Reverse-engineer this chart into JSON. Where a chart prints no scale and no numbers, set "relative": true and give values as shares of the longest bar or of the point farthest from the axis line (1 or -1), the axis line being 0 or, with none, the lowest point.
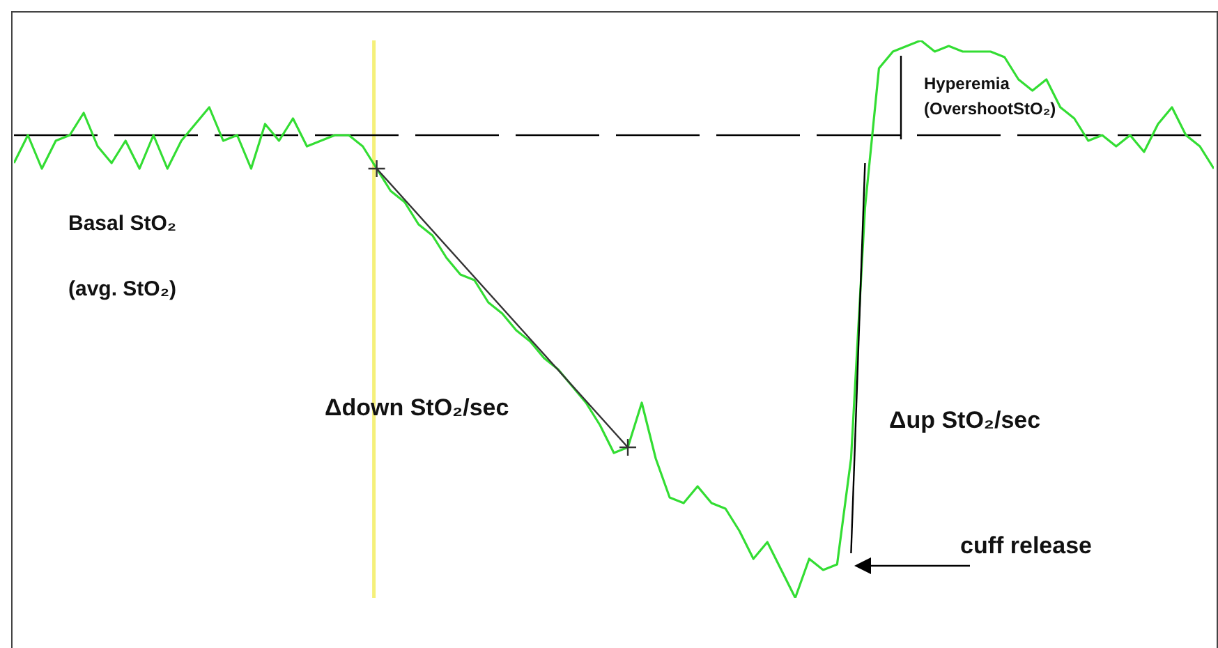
{
  "chart_data": {
    "type": "line",
    "relative": true,
    "categories": [
      null,
      null,
      null,
      null,
      null,
      null,
      null,
      null,
      null,
      null,
      null,
      null,
      null,
      null,
      null,
      null,
      null,
      null,
      null,
      null,
      null,
      null,
      null,
      null,
      null,
      null,
      null,
      null,
      null,
      null,
      null,
      null,
      null,
      null,
      null,
      null,
      null,
      null,
      null,
      null,
      null,
      null,
      null,
      null,
      null,
      null,
      null,
      null,
      null,
      null,
      null,
      null,
      null,
      null,
      null,
      null,
      null,
      null,
      null,
      null,
      null,
      null,
      null,
      null,
      null,
      null,
      null,
      null,
      null,
      null,
      null,
      null,
      null,
      null,
      null,
      null,
      null,
      null,
      null,
      null,
      null,
      null,
      null,
      null,
      null,
      null,
      null
    ],
    "series": [
      {
        "color": "#33dd33",
        "marker": "none",
        "values": [
          0.78,
          0.83,
          0.77,
          0.82,
          0.83,
          0.87,
          0.81,
          0.78,
          0.82,
          0.77,
          0.83,
          0.77,
          0.82,
          0.85,
          0.88,
          0.82,
          0.83,
          0.77,
          0.85,
          0.82,
          0.86,
          0.81,
          0.82,
          0.83,
          0.83,
          0.81,
          0.77,
          0.73,
          0.71,
          0.67,
          0.65,
          0.61,
          0.58,
          0.57,
          0.53,
          0.51,
          0.48,
          0.46,
          0.43,
          0.41,
          0.38,
          0.35,
          0.31,
          0.26,
          0.27,
          0.35,
          0.25,
          0.18,
          0.17,
          0.2,
          0.17,
          0.16,
          0.12,
          0.07,
          0.1,
          0.05,
          0,
          0.07,
          0.05,
          0.06,
          0.25,
          0.7,
          0.95,
          0.98,
          0.99,
          1,
          0.98,
          0.99,
          0.98,
          0.98,
          0.98,
          0.97,
          0.93,
          0.91,
          0.93,
          0.88,
          0.86,
          0.82,
          0.83,
          0.81,
          0.83,
          0.8,
          0.85,
          0.88,
          0.83,
          0.81,
          0.77
        ]
      },
      {
        "type": "line",
        "color": "#333333",
        "marker": "cross",
        "values": [
          null,
          null,
          null,
          null,
          null,
          null,
          null,
          null,
          null,
          null,
          null,
          null,
          null,
          null,
          null,
          null,
          null,
          null,
          null,
          null,
          null,
          null,
          null,
          null,
          null,
          null,
          0.77,
          null,
          null,
          null,
          null,
          null,
          null,
          null,
          null,
          null,
          null,
          null,
          null,
          null,
          null,
          null,
          null,
          null,
          0.27,
          null,
          null,
          null,
          null,
          null,
          null,
          null,
          null,
          null,
          null,
          null,
          null,
          null,
          null,
          null,
          null,
          null,
          null,
          null,
          null,
          null,
          null,
          null,
          null,
          null,
          null,
          null,
          null,
          null,
          null,
          null,
          null,
          null,
          null,
          null,
          null,
          null,
          null,
          null,
          null,
          null,
          null
        ]
      },
      {
        "type": "line",
        "color": "#000000",
        "marker": "none",
        "values": [
          null,
          null,
          null,
          null,
          null,
          null,
          null,
          null,
          null,
          null,
          null,
          null,
          null,
          null,
          null,
          null,
          null,
          null,
          null,
          null,
          null,
          null,
          null,
          null,
          null,
          null,
          null,
          null,
          null,
          null,
          null,
          null,
          null,
          null,
          null,
          null,
          null,
          null,
          null,
          null,
          null,
          null,
          null,
          null,
          null,
          null,
          null,
          null,
          null,
          null,
          null,
          null,
          null,
          null,
          null,
          null,
          null,
          null,
          null,
          null,
          0.08,
          0.78,
          null,
          null,
          null,
          null,
          null,
          null,
          null,
          null,
          null,
          null,
          null,
          null,
          null,
          null,
          null,
          null,
          null,
          null,
          null,
          null,
          null,
          null,
          null,
          null,
          null
        ]
      }
    ],
    "ref_lines": [
      {
        "axis": "y",
        "value": 0.83,
        "label": null,
        "color": "#000000",
        "line_style": "dashed"
      }
    ],
    "annotations": [
      "Basal StO₂",
      "(avg. StO₂)",
      "Δdown StO₂/sec",
      "Δup StO₂/sec",
      "Hyperemia",
      "(OvershootStO₂)",
      "cuff release"
    ],
    "grid": false,
    "legend": false
  }
}
